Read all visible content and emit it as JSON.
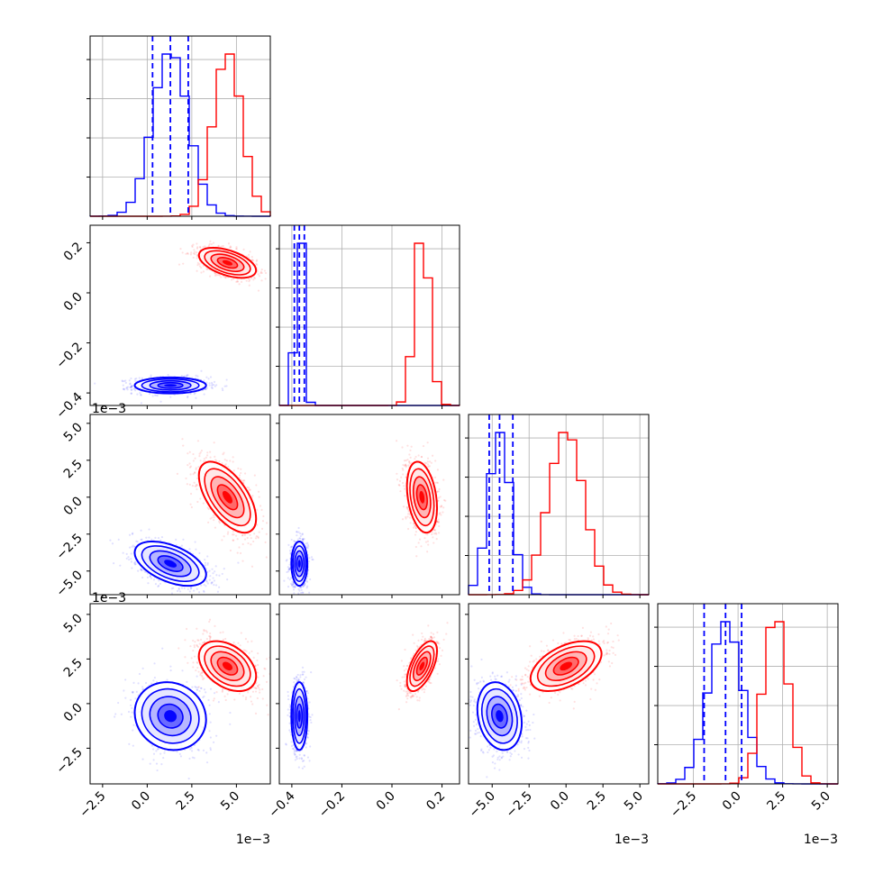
{
  "chart_data": {
    "type": "corner",
    "n_params": 4,
    "series": [
      {
        "color": "#0000ff"
      },
      {
        "color": "#ff0000"
      }
    ],
    "axes": [
      {
        "range": [
          -3.2,
          6.9
        ],
        "ticks": [
          -2.5,
          0.0,
          2.5,
          5.0
        ],
        "tick_labels": [
          "−2.5",
          "0.0",
          "2.5",
          "5.0"
        ],
        "offset_text": "1e−3",
        "dist": [
          {
            "mean": 1.3,
            "sd": 1.0,
            "cov": 0.0
          },
          {
            "mean": 4.5,
            "sd": 0.8,
            "cov": 0.0
          }
        ],
        "quantiles_blue": [
          0.3,
          1.3,
          2.3
        ]
      },
      {
        "range": [
          -0.45,
          0.27
        ],
        "ticks": [
          -0.4,
          -0.2,
          0.0,
          0.2
        ],
        "tick_labels": [
          "−0.4",
          "−0.2",
          "0.0",
          "0.2"
        ],
        "offset_text": "",
        "dist": [
          {
            "mean": -0.37,
            "sd": 0.016
          },
          {
            "mean": 0.12,
            "sd": 0.03
          }
        ],
        "quantiles_blue": [
          -0.39,
          -0.37,
          -0.35
        ]
      },
      {
        "range": [
          -6.6,
          5.6
        ],
        "ticks": [
          -5.0,
          -2.5,
          0.0,
          2.5,
          5.0
        ],
        "tick_labels": [
          "−5.0",
          "−2.5",
          "0.0",
          "2.5",
          "5.0"
        ],
        "offset_text": "1e−3",
        "dist": [
          {
            "mean": -4.5,
            "sd": 0.75
          },
          {
            "mean": 0.0,
            "sd": 1.2
          }
        ],
        "quantiles_blue": [
          -5.2,
          -4.5,
          -3.6
        ]
      },
      {
        "range": [
          -4.5,
          5.6
        ],
        "ticks": [
          -2.5,
          0.0,
          2.5,
          5.0
        ],
        "tick_labels": [
          "−2.5",
          "0.0",
          "2.5",
          "5.0"
        ],
        "offset_text": "1e−3",
        "dist": [
          {
            "mean": -0.7,
            "sd": 0.95
          },
          {
            "mean": 2.1,
            "sd": 0.7
          }
        ],
        "quantiles_blue": [
          -1.9,
          -0.7,
          0.2
        ]
      }
    ],
    "pair_correlations": {
      "1,0": [
        0.0,
        -0.5
      ],
      "2,0": [
        -0.5,
        -0.6
      ],
      "2,1": [
        0.0,
        -0.3
      ],
      "3,0": [
        -0.1,
        -0.4
      ],
      "3,1": [
        0.0,
        0.6
      ],
      "3,2": [
        -0.2,
        0.5
      ]
    },
    "hist_bins": 20,
    "grid": true
  }
}
